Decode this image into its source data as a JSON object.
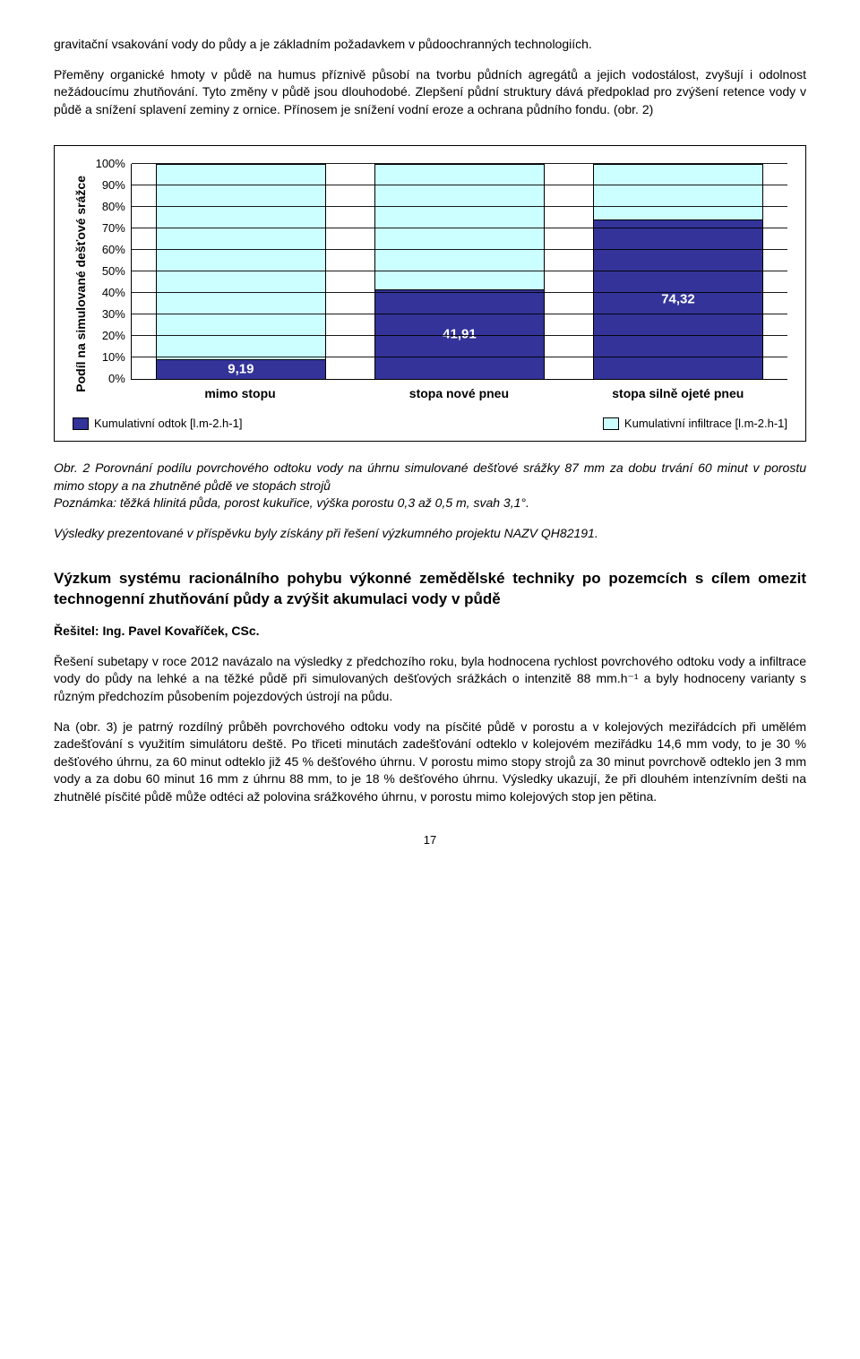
{
  "para1": "gravitační vsakování vody do půdy a je základním požadavkem v půdoochranných technologiích.",
  "para2": "Přeměny organické hmoty v půdě na humus příznivě působí na tvorbu půdních agregátů a jejich vodostálost, zvyšují i odolnost nežádoucímu zhutňování. Tyto změny v půdě jsou dlouhodobé. Zlepšení půdní struktury dává předpoklad pro zvýšení retence vody v půdě a snížení splavení zeminy z ornice. Přínosem je snížení vodní eroze a ochrana půdního fondu. (obr. 2)",
  "chart": {
    "ylabel": "Podíl na simulované dešťové srážce",
    "ylim": [
      0,
      100
    ],
    "ytick_step": 10,
    "categories": [
      "mimo stopu",
      "stopa nové pneu",
      "stopa silně ojeté pneu"
    ],
    "bottom_values": [
      9.19,
      41.91,
      74.32
    ],
    "bottom_labels": [
      "9,19",
      "41,91",
      "74,32"
    ],
    "colors": {
      "bottom": "#333399",
      "top": "#ccffff",
      "border": "#000000"
    },
    "legend": {
      "left": "Kumulativní odtok [l.m-2.h-1]",
      "right": "Kumulativní infiltrace [l.m-2.h-1]"
    }
  },
  "caption": {
    "line1": "Obr. 2 Porovnání podílu povrchového odtoku vody na úhrnu simulované dešťové srážky 87 mm za dobu trvání 60 minut v porostu mimo stopy a na zhutněné půdě ve stopách strojů",
    "line2": "Poznámka: těžká hlinitá půda, porost kukuřice, výška porostu 0,3 až 0,5 m, svah 3,1°.",
    "line3": "Výsledky prezentované v příspěvku byly získány při řešení výzkumného projektu NAZV QH82191."
  },
  "section_title": "Výzkum systému racionálního pohybu výkonné zemědělské techniky po pozemcích s cílem omezit technogenní zhutňování půdy a zvýšit akumulaci vody v půdě",
  "author": "Řešitel: Ing. Pavel Kovaříček, CSc.",
  "para3": "Řešení subetapy v roce 2012 navázalo na výsledky z předchozího roku, byla hodnocena rychlost povrchového odtoku vody a infiltrace vody do půdy na lehké a na těžké půdě při simulovaných dešťových srážkách o intenzitě 88 mm.h⁻¹ a byly hodnoceny varianty s různým předchozím působením pojezdových ústrojí na půdu.",
  "para4": "Na (obr. 3) je patrný rozdílný průběh povrchového odtoku vody na písčité půdě v porostu a v kolejových meziřádcích při umělém zadešťování s využitím simulátoru deště. Po třiceti minutách zadešťování odteklo v kolejovém meziřádku 14,6 mm vody, to je 30 % dešťového úhrnu, za 60 minut odteklo již 45 % dešťového úhrnu. V porostu mimo stopy strojů za 30 minut povrchově odteklo jen 3 mm vody a za dobu 60 minut 16 mm z úhrnu 88 mm, to je 18 % dešťového úhrnu. Výsledky ukazují, že při dlouhém intenzívním dešti na zhutnělé písčité půdě může odtéci až polovina srážkového úhrnu, v porostu mimo kolejových stop jen pětina.",
  "pagenum": "17"
}
